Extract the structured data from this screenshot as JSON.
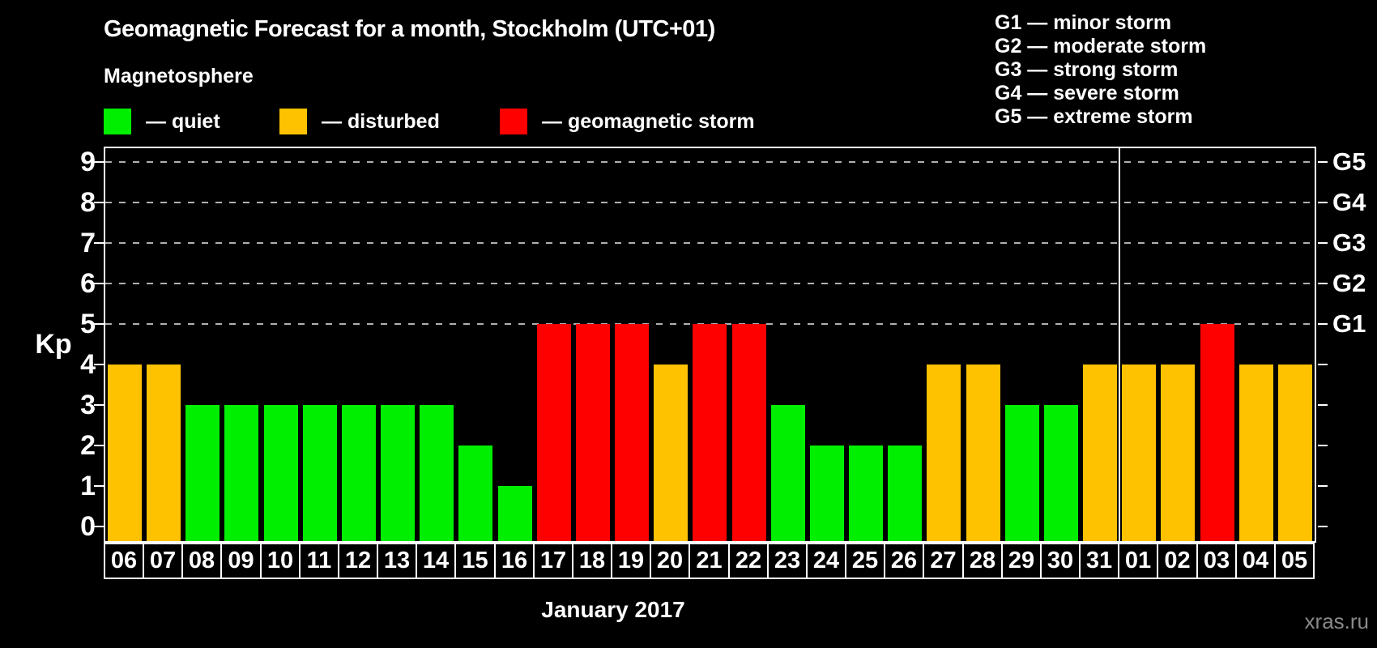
{
  "header": {
    "title": "Geomagnetic Forecast for a month, Stockholm (UTC+01)",
    "legend_title": "Magnetosphere",
    "legend": [
      {
        "label": "— quiet",
        "status": "quiet"
      },
      {
        "label": "— disturbed",
        "status": "disturbed"
      },
      {
        "label": "— geomagnetic storm",
        "status": "storm"
      }
    ]
  },
  "g_legend": [
    "G1 — minor storm",
    "G2 — moderate storm",
    "G3 — strong storm",
    "G4 — severe storm",
    "G5 — extreme storm"
  ],
  "colors": {
    "quiet": "#00ee00",
    "disturbed": "#ffc200",
    "storm": "#ff0000",
    "axis": "#ffffff",
    "grid": "#b0b0b0",
    "watermark": "#8a8a8a"
  },
  "axis": {
    "kp_label": "Kp",
    "kp_ticks": [
      0,
      1,
      2,
      3,
      4,
      5,
      6,
      7,
      8,
      9
    ],
    "grid_kp": [
      5,
      6,
      7,
      8,
      9
    ],
    "g_ticks": [
      {
        "kp": 5,
        "label": "G1"
      },
      {
        "kp": 6,
        "label": "G2"
      },
      {
        "kp": 7,
        "label": "G3"
      },
      {
        "kp": 8,
        "label": "G4"
      },
      {
        "kp": 9,
        "label": "G5"
      }
    ]
  },
  "footer": {
    "month_label": "January 2017",
    "watermark": "xras.ru"
  },
  "chart_data": {
    "type": "bar",
    "title": "Geomagnetic Forecast for a month, Stockholm (UTC+01)",
    "xlabel": "January 2017",
    "ylabel": "Kp",
    "ylim": [
      0,
      9
    ],
    "grid": "dashed horizontal at Kp 5-9 only",
    "legend_position": "top-left",
    "categories": [
      "06",
      "07",
      "08",
      "09",
      "10",
      "11",
      "12",
      "13",
      "14",
      "15",
      "16",
      "17",
      "18",
      "19",
      "20",
      "21",
      "22",
      "23",
      "24",
      "25",
      "26",
      "27",
      "28",
      "29",
      "30",
      "31",
      "01",
      "02",
      "03",
      "04",
      "05"
    ],
    "values": [
      4,
      4,
      3,
      3,
      3,
      3,
      3,
      3,
      3,
      2,
      1,
      5,
      5,
      5,
      4,
      5,
      5,
      3,
      2,
      2,
      2,
      4,
      4,
      3,
      3,
      4,
      4,
      4,
      5,
      4,
      4
    ],
    "statuses": [
      "disturbed",
      "disturbed",
      "quiet",
      "quiet",
      "quiet",
      "quiet",
      "quiet",
      "quiet",
      "quiet",
      "quiet",
      "quiet",
      "storm",
      "storm",
      "storm",
      "disturbed",
      "storm",
      "storm",
      "quiet",
      "quiet",
      "quiet",
      "quiet",
      "disturbed",
      "disturbed",
      "quiet",
      "quiet",
      "disturbed",
      "disturbed",
      "disturbed",
      "storm",
      "disturbed",
      "disturbed"
    ],
    "month_boundary_after_index": 25
  }
}
